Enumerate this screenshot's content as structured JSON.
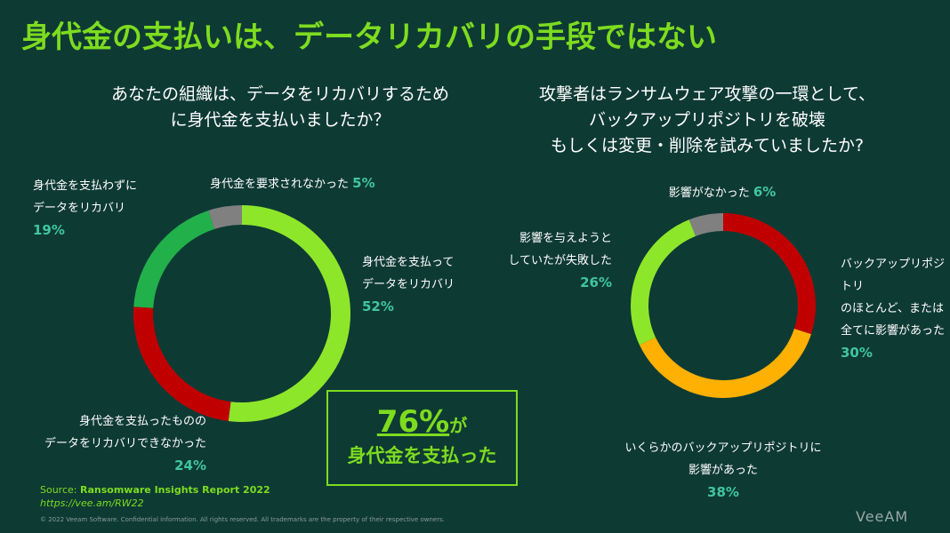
{
  "title": "身代金の支払いは、データリカバリの手段ではない",
  "chart_data": [
    {
      "type": "donut",
      "title": "あなたの組織は、データをリカバリするため\nに身代金を支払いましたか？",
      "categories": [
        "身代金を支払って\nデータをリカバリ",
        "身代金を支払ったものの\nデータをリカバリできなかった",
        "身代金を支払わずに\nデータをリカバリ",
        "身代金を要求されなかった"
      ],
      "values": [
        52,
        24,
        19,
        5
      ],
      "value_labels": [
        "52%",
        "24%",
        "19%",
        "5%"
      ],
      "colors": [
        "#8ee62a",
        "#c00000",
        "#22b04b",
        "#808080"
      ]
    },
    {
      "type": "donut",
      "title": "攻撃者はランサムウェア攻撃の一環として、\nバックアップリポジトリを破壊\nもしくは変更・削除を試みていましたか?",
      "categories": [
        "バックアップリポジトリ\nのほとんど、または\n全てに影響があった",
        "いくらかのバックアップリポジトリに\n影響があった",
        "影響を与えようと\nしていたが失敗した",
        "影響がなかった"
      ],
      "values": [
        30,
        38,
        26,
        6
      ],
      "value_labels": [
        "30%",
        "38%",
        "26%",
        "6%"
      ],
      "colors": [
        "#c00000",
        "#ffb000",
        "#8ee62a",
        "#808080"
      ]
    }
  ],
  "callout": {
    "figure": "76%",
    "suffix": "が",
    "text": "身代金を支払った"
  },
  "source": {
    "label": "Source:",
    "title": "Ransomware Insights Report 2022",
    "url": "https://vee.am/RW22"
  },
  "footer": "© 2022 Veeam Software. Confidential information. All rights reserved. All trademarks are the property of their respective owners.",
  "logo": "VeeAM"
}
